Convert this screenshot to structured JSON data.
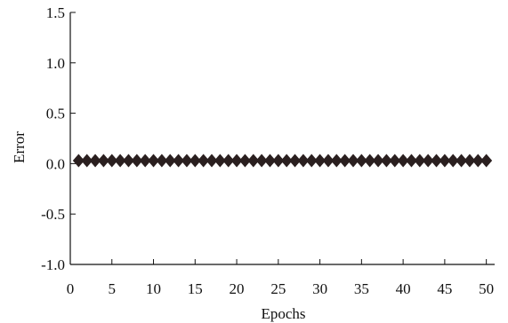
{
  "chart_data": {
    "type": "scatter",
    "xlabel": "Epochs",
    "ylabel": "Error",
    "xlim": [
      0,
      51
    ],
    "ylim": [
      -1.0,
      1.5
    ],
    "xticks": [
      0,
      5,
      10,
      15,
      20,
      25,
      30,
      35,
      40,
      45,
      50
    ],
    "yticks": [
      1.5,
      1.0,
      0.5,
      0.0,
      -0.5,
      -1.0
    ],
    "xtick_labels": [
      "0",
      "5",
      "10",
      "15",
      "20",
      "25",
      "30",
      "35",
      "40",
      "45",
      "50"
    ],
    "ytick_labels": [
      "1.5",
      "1.0",
      "0.5",
      "0.0",
      "-0.5",
      "-1.0"
    ],
    "grid": false,
    "marker": "diamond",
    "marker_color": "#2a1f1f",
    "series": [
      {
        "x": [
          1,
          2,
          3,
          4,
          5,
          6,
          7,
          8,
          9,
          10,
          11,
          12,
          13,
          14,
          15,
          16,
          17,
          18,
          19,
          20,
          21,
          22,
          23,
          24,
          25,
          26,
          27,
          28,
          29,
          30,
          31,
          32,
          33,
          34,
          35,
          36,
          37,
          38,
          39,
          40,
          41,
          42,
          43,
          44,
          45,
          46,
          47,
          48,
          49,
          50
        ],
        "values": [
          0.03,
          0.03,
          0.03,
          0.03,
          0.03,
          0.03,
          0.03,
          0.03,
          0.03,
          0.03,
          0.03,
          0.03,
          0.03,
          0.03,
          0.03,
          0.03,
          0.03,
          0.03,
          0.03,
          0.03,
          0.03,
          0.03,
          0.03,
          0.03,
          0.03,
          0.03,
          0.03,
          0.03,
          0.03,
          0.03,
          0.03,
          0.03,
          0.03,
          0.03,
          0.03,
          0.03,
          0.03,
          0.03,
          0.03,
          0.03,
          0.03,
          0.03,
          0.03,
          0.03,
          0.03,
          0.03,
          0.03,
          0.03,
          0.03,
          0.03
        ]
      }
    ]
  }
}
